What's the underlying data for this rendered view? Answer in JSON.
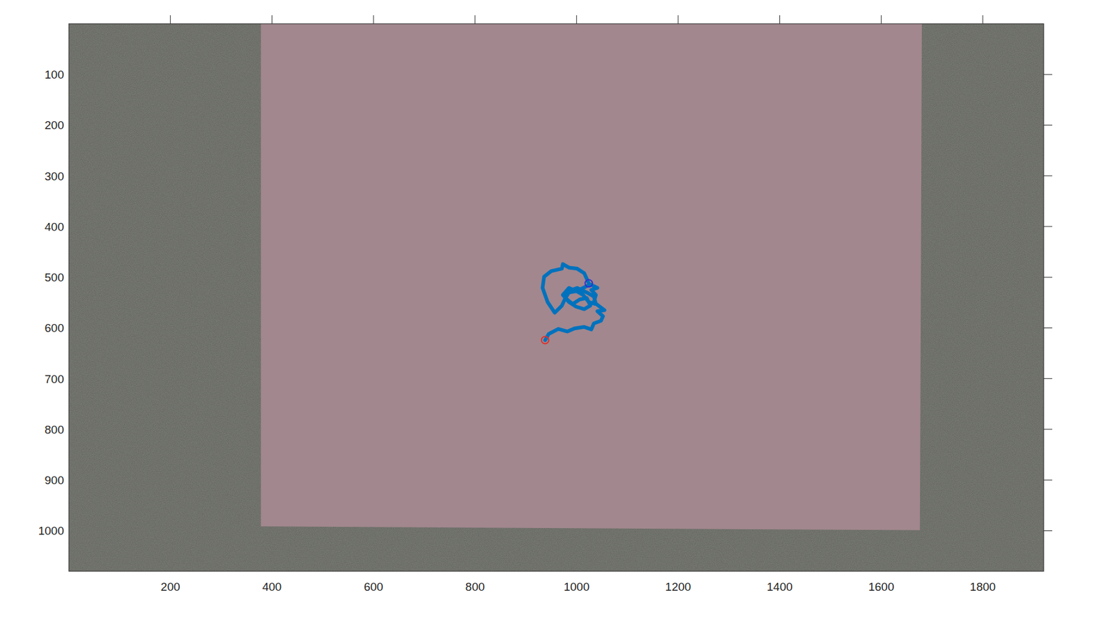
{
  "chart_data": {
    "type": "line",
    "xlim": [
      0,
      1920
    ],
    "ylim": [
      1080,
      0
    ],
    "xticks": [
      200,
      400,
      600,
      800,
      1000,
      1200,
      1400,
      1600,
      1800
    ],
    "yticks": [
      100,
      200,
      300,
      400,
      500,
      600,
      700,
      800,
      900,
      1000
    ],
    "series": [
      {
        "color": "#0072BD",
        "x": [
          938,
          945,
          964,
          982,
          996,
          1015,
          1029,
          1034,
          1048,
          1052,
          1041,
          1055,
          1043,
          1034,
          1038,
          1029,
          1041,
          1027,
          1013,
          1001,
          985,
          978,
          992,
          1006,
          1020,
          1027,
          1015,
          999,
          985,
          973,
          985,
          999,
          1013,
          1024,
          1038,
          1034,
          1020,
          1001,
          985,
          978,
          971,
          957,
          943,
          933,
          936,
          950,
          971,
          973,
          985,
          1001,
          1015,
          1021,
          1024
        ],
        "values": [
          624,
          612,
          602,
          607,
          601,
          598,
          603,
          591,
          586,
          577,
          567,
          565,
          556,
          549,
          535,
          525,
          521,
          514,
          521,
          527,
          530,
          541,
          553,
          544,
          541,
          556,
          563,
          558,
          549,
          535,
          521,
          527,
          535,
          549,
          553,
          538,
          530,
          521,
          527,
          541,
          556,
          570,
          549,
          521,
          499,
          488,
          483,
          474,
          481,
          483,
          492,
          505,
          512
        ]
      }
    ]
  }
}
